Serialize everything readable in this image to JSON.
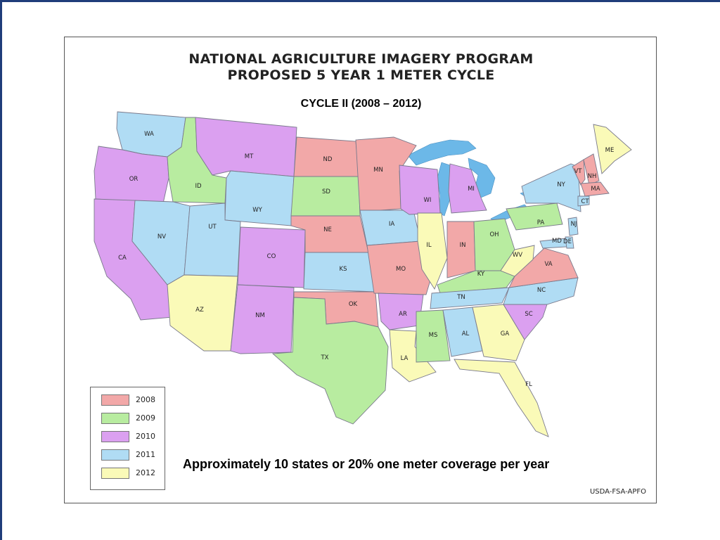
{
  "title_line1": "NATIONAL AGRICULTURE IMAGERY PROGRAM",
  "title_line2": "PROPOSED 5 YEAR 1 METER CYCLE",
  "subtitle": "CYCLE II  (2008 – 2012)",
  "coverage_note": "Approximately 10 states or 20% one meter coverage per year",
  "credit": "USDA-FSA-APFO",
  "legend": [
    {
      "year": "2008",
      "color": "#f2a8a8"
    },
    {
      "year": "2009",
      "color": "#b8eca0"
    },
    {
      "year": "2010",
      "color": "#dba0f0"
    },
    {
      "year": "2011",
      "color": "#b0dcf4"
    },
    {
      "year": "2012",
      "color": "#fafab8"
    }
  ],
  "colors": {
    "2008": "#f2a8a8",
    "2009": "#b8eca0",
    "2010": "#dba0f0",
    "2011": "#b0dcf4",
    "2012": "#fafab8",
    "water": "#6cb8e8",
    "frame": "#1f3d7a"
  },
  "states": [
    {
      "abbr": "WA",
      "year": "2011"
    },
    {
      "abbr": "OR",
      "year": "2010"
    },
    {
      "abbr": "CA",
      "year": "2010"
    },
    {
      "abbr": "ID",
      "year": "2009"
    },
    {
      "abbr": "NV",
      "year": "2011"
    },
    {
      "abbr": "MT",
      "year": "2010"
    },
    {
      "abbr": "WY",
      "year": "2011"
    },
    {
      "abbr": "UT",
      "year": "2011"
    },
    {
      "abbr": "AZ",
      "year": "2012"
    },
    {
      "abbr": "CO",
      "year": "2010"
    },
    {
      "abbr": "NM",
      "year": "2010"
    },
    {
      "abbr": "ND",
      "year": "2008"
    },
    {
      "abbr": "SD",
      "year": "2009"
    },
    {
      "abbr": "NE",
      "year": "2008"
    },
    {
      "abbr": "KS",
      "year": "2011"
    },
    {
      "abbr": "OK",
      "year": "2008"
    },
    {
      "abbr": "TX",
      "year": "2009"
    },
    {
      "abbr": "MN",
      "year": "2008"
    },
    {
      "abbr": "IA",
      "year": "2011"
    },
    {
      "abbr": "MO",
      "year": "2008"
    },
    {
      "abbr": "AR",
      "year": "2010"
    },
    {
      "abbr": "LA",
      "year": "2012"
    },
    {
      "abbr": "WI",
      "year": "2010"
    },
    {
      "abbr": "IL",
      "year": "2012"
    },
    {
      "abbr": "MI",
      "year": "2010"
    },
    {
      "abbr": "IN",
      "year": "2008"
    },
    {
      "abbr": "OH",
      "year": "2009"
    },
    {
      "abbr": "KY",
      "year": "2009"
    },
    {
      "abbr": "TN",
      "year": "2011"
    },
    {
      "abbr": "MS",
      "year": "2009"
    },
    {
      "abbr": "AL",
      "year": "2011"
    },
    {
      "abbr": "GA",
      "year": "2012"
    },
    {
      "abbr": "FL",
      "year": "2012"
    },
    {
      "abbr": "SC",
      "year": "2010"
    },
    {
      "abbr": "NC",
      "year": "2011"
    },
    {
      "abbr": "VA",
      "year": "2008"
    },
    {
      "abbr": "WV",
      "year": "2012"
    },
    {
      "abbr": "PA",
      "year": "2009"
    },
    {
      "abbr": "NY",
      "year": "2011"
    },
    {
      "abbr": "ME",
      "year": "2012"
    },
    {
      "abbr": "VT",
      "year": "2008"
    },
    {
      "abbr": "NH",
      "year": "2008"
    },
    {
      "abbr": "MA",
      "year": "2008"
    },
    {
      "abbr": "CT",
      "year": "2011"
    },
    {
      "abbr": "NJ",
      "year": "2011"
    },
    {
      "abbr": "MD",
      "year": "2011"
    },
    {
      "abbr": "DE",
      "year": "2011"
    }
  ]
}
